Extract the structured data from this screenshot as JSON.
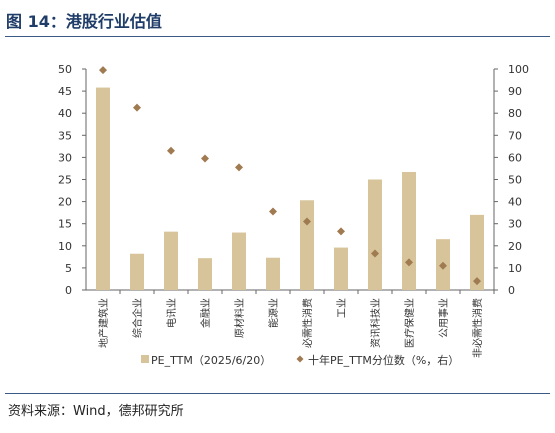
{
  "header": {
    "title": "图 14：港股行业估值"
  },
  "footer": {
    "source": "资料来源：Wind，德邦研究所"
  },
  "colors": {
    "bar": "#d7c49a",
    "marker": "#a07a50",
    "axis": "#666666",
    "rule": "#3b5a86",
    "title": "#1f3d68"
  },
  "chart_data": {
    "type": "bar",
    "categories": [
      "地产建筑业",
      "综合企业",
      "电讯业",
      "金融业",
      "原材料业",
      "能源业",
      "必需性消费",
      "工业",
      "资讯科技业",
      "医疗保健业",
      "公用事业",
      "非必需性消费"
    ],
    "series": [
      {
        "name": "PE_TTM（2025/6/20）",
        "type": "bar",
        "axis": "left",
        "values": [
          45.8,
          8.2,
          13.2,
          7.2,
          13.0,
          7.3,
          20.3,
          9.6,
          25.0,
          26.7,
          11.5,
          17.0
        ]
      },
      {
        "name": "十年PE_TTM分位数（%，右）",
        "type": "scatter",
        "axis": "right",
        "values": [
          99.5,
          82.5,
          63.0,
          59.5,
          55.5,
          35.5,
          31.0,
          26.5,
          16.5,
          12.5,
          11.0,
          4.0
        ]
      }
    ],
    "y_left": {
      "ylim": [
        0,
        50
      ],
      "ticks": [
        0,
        5,
        10,
        15,
        20,
        25,
        30,
        35,
        40,
        45,
        50
      ]
    },
    "y_right": {
      "ylim": [
        0,
        100
      ],
      "ticks": [
        0,
        10,
        20,
        30,
        40,
        50,
        60,
        70,
        80,
        90,
        100
      ]
    },
    "legend": {
      "placement": "bottom"
    },
    "grid": false
  }
}
